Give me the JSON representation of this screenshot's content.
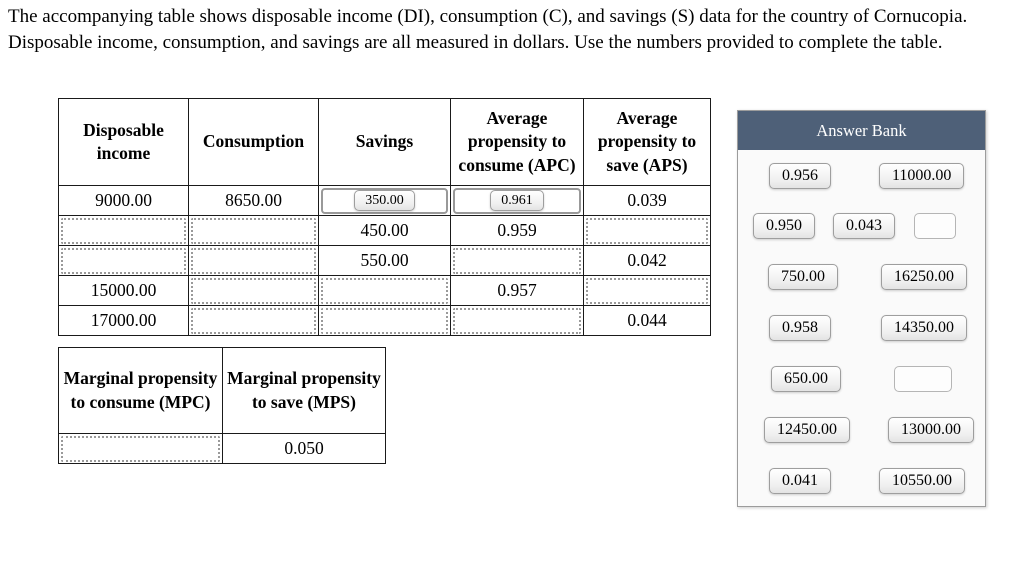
{
  "intro": {
    "line1": "The accompanying table shows disposable income (DI), consumption (C), and savings (S) data for the country of Cornucopia.",
    "line2": "Disposable income, consumption, and savings are all measured in dollars. Use the numbers provided to complete the table."
  },
  "main_table": {
    "headers": [
      "Disposable income",
      "Consumption",
      "Savings",
      "Average propensity to consume (APC)",
      "Average propensity to save (APS)"
    ],
    "rows": [
      {
        "di": "9000.00",
        "c": "8650.00",
        "s": "350.00",
        "apc": "0.961",
        "aps": "0.039"
      },
      {
        "s": "450.00",
        "apc": "0.959"
      },
      {
        "s": "550.00",
        "aps": "0.042"
      },
      {
        "di": "15000.00",
        "apc": "0.957"
      },
      {
        "di": "17000.00",
        "aps": "0.044"
      }
    ]
  },
  "marginal_table": {
    "headers": [
      "Marginal propensity to consume (MPC)",
      "Marginal propensity to save (MPS)"
    ],
    "mps_value": "0.050"
  },
  "answer_bank": {
    "title": "Answer Bank",
    "chips": [
      "0.956",
      "11000.00",
      "0.950",
      "0.043",
      "",
      "750.00",
      "16250.00",
      "0.958",
      "14350.00",
      "650.00",
      "",
      "12450.00",
      "13000.00",
      "0.041",
      "10550.00"
    ]
  }
}
